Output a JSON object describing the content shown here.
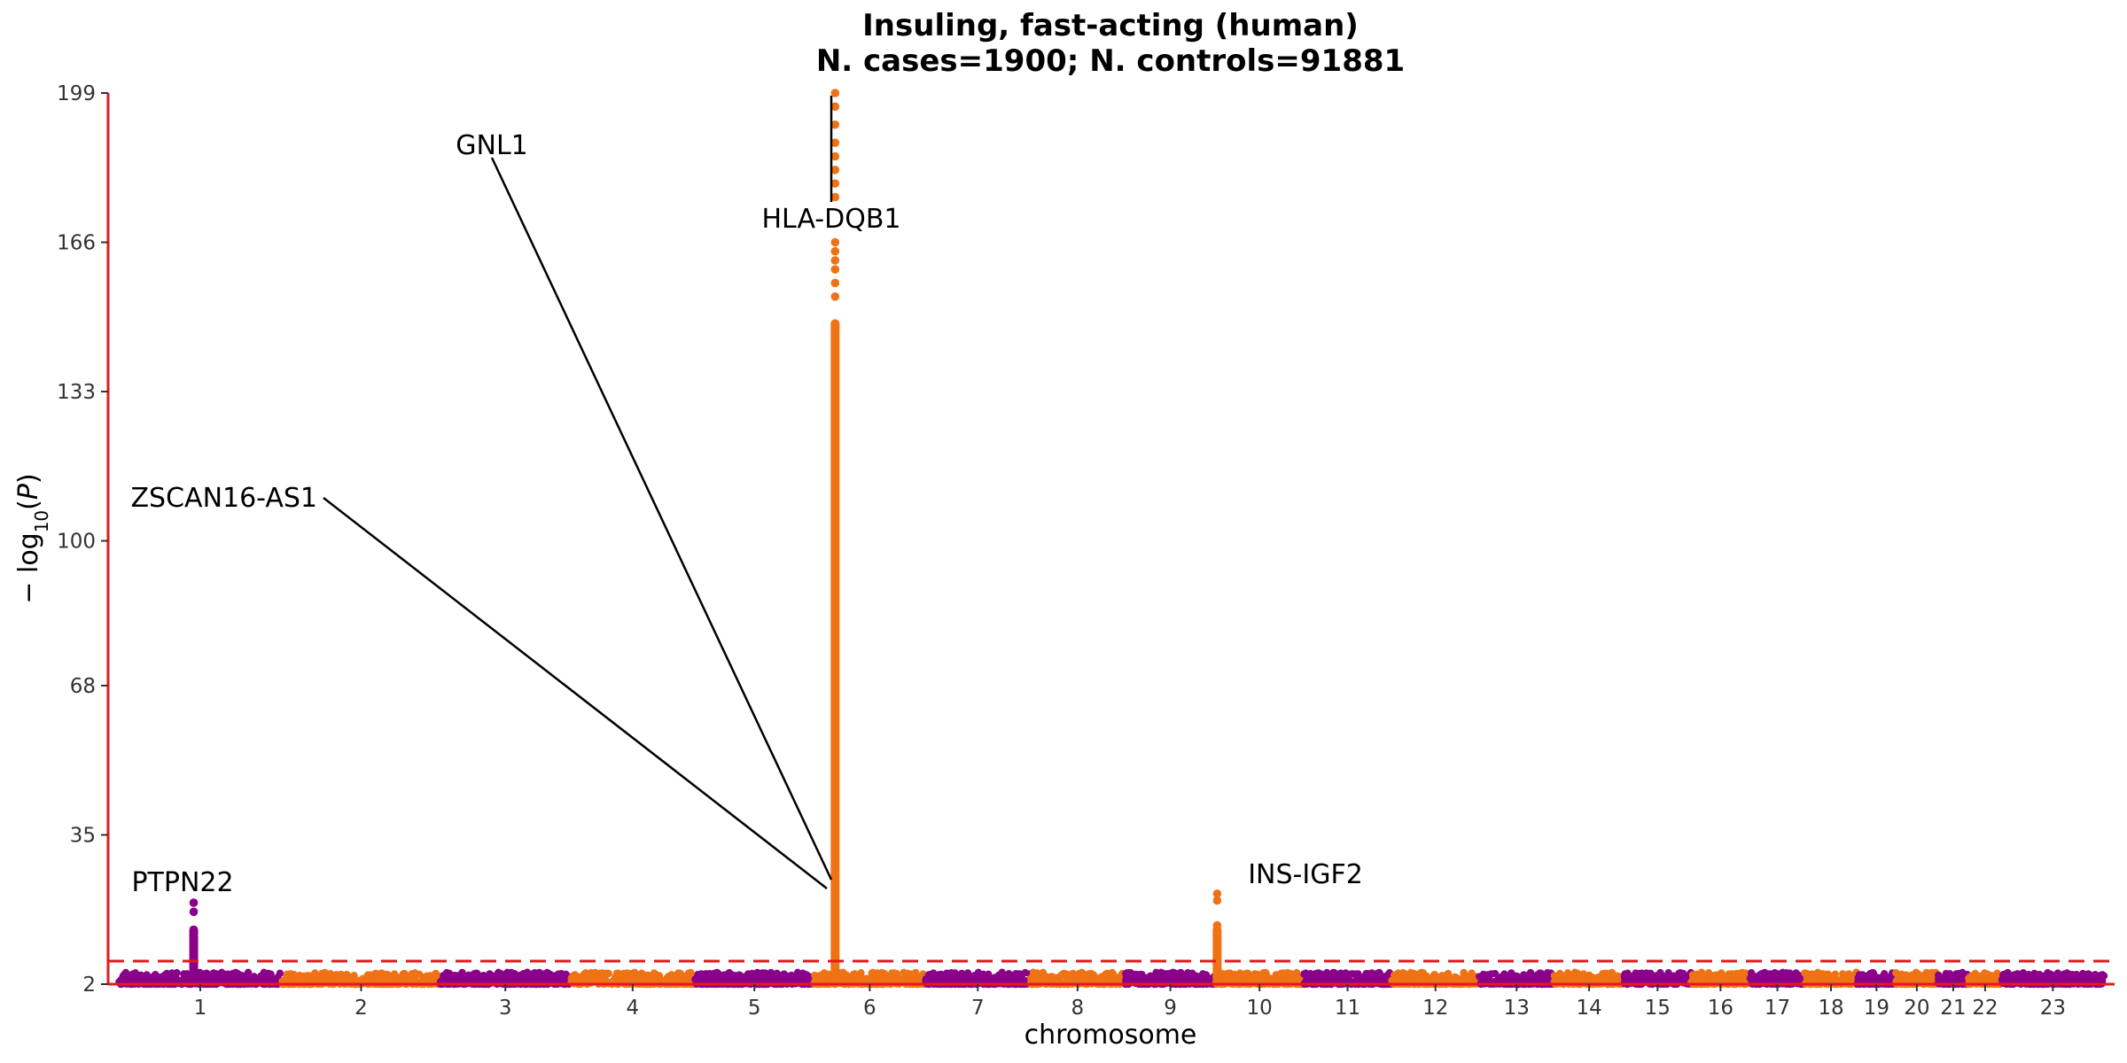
{
  "chart_data": {
    "type": "scatter",
    "title": "Insuling, fast-acting (human)",
    "subtitle": "N. cases=1900; N. controls=91881",
    "xlabel": "chromosome",
    "ylabel": "− log10(P)",
    "ylim": [
      2,
      199
    ],
    "y_ticks": [
      2,
      35,
      68,
      100,
      133,
      166,
      199
    ],
    "x_ticks": [
      "1",
      "2",
      "3",
      "4",
      "5",
      "6",
      "7",
      "8",
      "9",
      "10",
      "11",
      "12",
      "13",
      "14",
      "15",
      "16",
      "17",
      "18",
      "19",
      "20",
      "21",
      "22",
      "23"
    ],
    "significance_line": 7.3,
    "colors": {
      "odd": "#8b008b",
      "even": "#ef7215",
      "threshold": "#e31a1c",
      "axis": "#e31a1c"
    },
    "chromosome_lengths": [
      248.9,
      242.2,
      198.3,
      190.2,
      181.5,
      170.8,
      159.3,
      145.1,
      138.4,
      133.8,
      135.1,
      133.3,
      114.4,
      107.0,
      102.0,
      90.3,
      83.3,
      80.4,
      58.6,
      64.4,
      46.7,
      50.8,
      156.0
    ],
    "peaks": [
      {
        "chromosome": "1",
        "position_mb": 114.4,
        "top": 20,
        "points": [
          20,
          18,
          9,
          7.5,
          6.5,
          5
        ]
      },
      {
        "chromosome": "6",
        "position_mb": 32.6,
        "top": 199,
        "points": [
          199,
          196,
          192,
          188,
          185,
          182,
          179,
          176,
          166,
          164,
          162,
          160,
          157,
          154,
          148
        ]
      },
      {
        "chromosome": "10",
        "position_mb": 2.2,
        "top": 22,
        "points": [
          22,
          20.5,
          15,
          14,
          13,
          12,
          11,
          10,
          9,
          8
        ]
      }
    ],
    "annotations": [
      {
        "label": "PTPN22",
        "chromosome": "1",
        "position_mb": 114.4
      },
      {
        "label": "GNL1",
        "chromosome": "6",
        "position_mb": 30.5,
        "y": 22
      },
      {
        "label": "ZSCAN16-AS1",
        "chromosome": "6",
        "position_mb": 28.1,
        "y": 22
      },
      {
        "label": "HLA-DQB1",
        "chromosome": "6",
        "position_mb": 32.6,
        "y": 199
      },
      {
        "label": "INS-IGF2",
        "chromosome": "11",
        "position_mb": 2.2
      }
    ]
  }
}
